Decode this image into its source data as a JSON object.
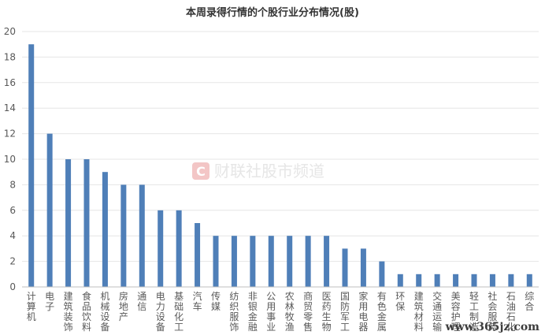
{
  "chart_data": {
    "type": "bar",
    "title": "本周录得行情的个股行业分布情况(股)",
    "categories": [
      "计算机",
      "电子",
      "建筑装饰",
      "食品饮料",
      "机械设备",
      "房地产",
      "通信",
      "电力设备",
      "基础化工",
      "汽车",
      "传媒",
      "纺织服饰",
      "非银金融",
      "公用事业",
      "农林牧渔",
      "商贸零售",
      "医药生物",
      "国防军工",
      "家用电器",
      "有色金属",
      "环保",
      "建筑材料",
      "交通运输",
      "美容护理",
      "轻工制造",
      "社会服务",
      "石油石化",
      "综合"
    ],
    "series": [
      {
        "values": [
          19,
          12,
          10,
          10,
          9,
          8,
          8,
          6,
          6,
          5,
          4,
          4,
          4,
          4,
          4,
          4,
          4,
          3,
          3,
          2,
          1,
          1,
          1,
          1,
          1,
          1,
          1,
          1
        ]
      }
    ],
    "ylim": [
      0,
      20
    ],
    "yticks": [
      0,
      2,
      4,
      6,
      8,
      10,
      12,
      14,
      16,
      18,
      20
    ],
    "grid": true,
    "legend": "none",
    "bar_color": "#4f7fb8"
  },
  "watermark": {
    "text": "财联社股市频道",
    "logo_letter": "C",
    "logo_color": "#f3c6c6"
  },
  "site_mark": "www.365jz.com"
}
